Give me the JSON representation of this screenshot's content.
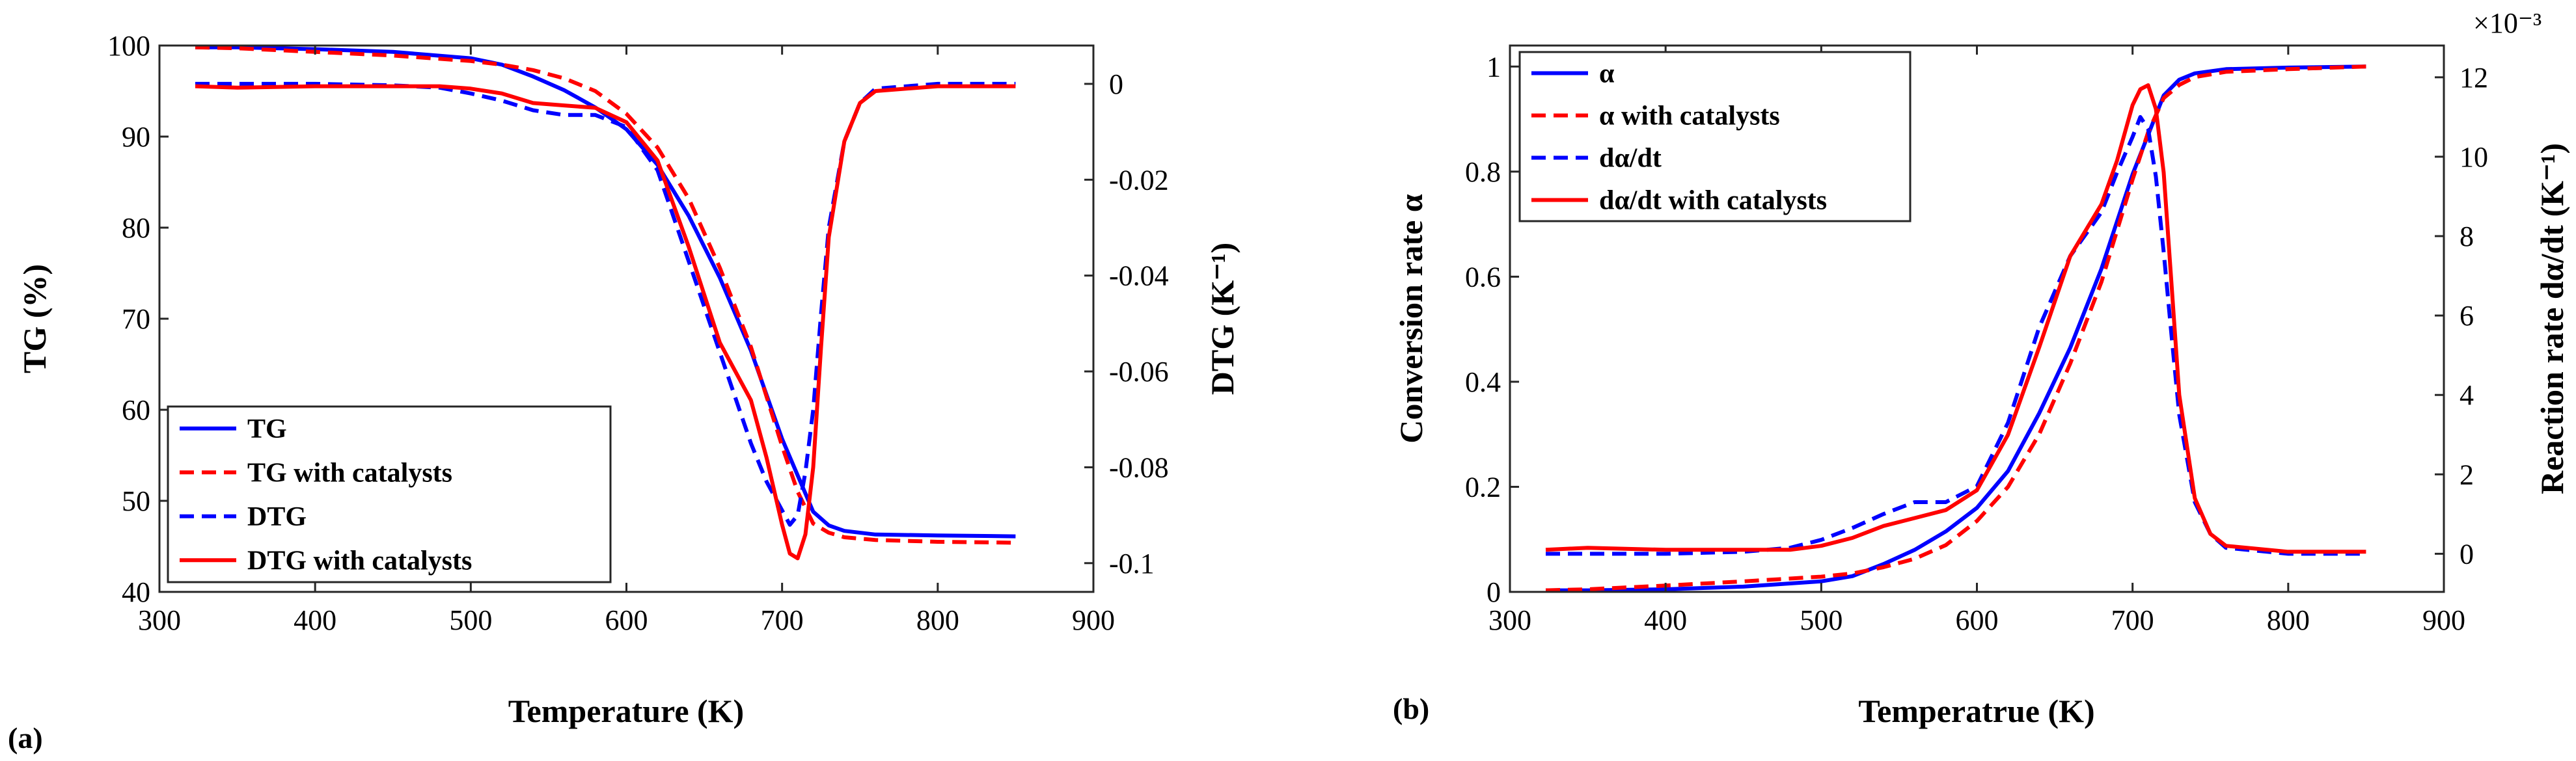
{
  "panels": {
    "a": {
      "label": "(a)",
      "xlabel": "Temperature (K)",
      "ylabel_left": "TG (%)",
      "ylabel_right": "DTG (K⁻¹)"
    },
    "b": {
      "label": "(b)",
      "xlabel": "Temperatrue (K)",
      "ylabel_left": "Conversion rate α",
      "ylabel_right": "Reaction rate dα/dt (K⁻¹)",
      "exponent_label": "×10⁻³"
    }
  },
  "chart_data": [
    {
      "type": "line",
      "panel": "(a)",
      "xlabel": "Temperature (K)",
      "ylabel": "TG (%)",
      "y2label": "DTG (K⁻¹)",
      "xlim": [
        300,
        900
      ],
      "ylim": [
        40,
        100
      ],
      "y2lim": [
        -0.106,
        0.008
      ],
      "x_ticks": [
        300,
        400,
        500,
        600,
        700,
        800,
        900
      ],
      "y_ticks": [
        40,
        50,
        60,
        70,
        80,
        90,
        100
      ],
      "y2_ticks": [
        "0",
        "-0.02",
        "-0.04",
        "-0.06",
        "-0.08",
        "-0.1"
      ],
      "y2_tick_values": [
        0,
        -0.02,
        -0.04,
        -0.06,
        -0.08,
        -0.1
      ],
      "legend_position": "bottom-left",
      "series": [
        {
          "name": "TG",
          "axis": "left",
          "color": "#0000ff",
          "dash": "solid",
          "x": [
            323,
            350,
            400,
            450,
            500,
            520,
            540,
            560,
            580,
            600,
            620,
            640,
            660,
            680,
            700,
            710,
            720,
            730,
            740,
            760,
            800,
            850
          ],
          "y": [
            99.8,
            99.8,
            99.6,
            99.3,
            98.6,
            97.9,
            96.6,
            95.1,
            93.2,
            90.8,
            86.9,
            81.3,
            74.5,
            66.5,
            56.8,
            52.8,
            48.8,
            47.3,
            46.7,
            46.3,
            46.2,
            46.1
          ]
        },
        {
          "name": "TG with catalysts",
          "axis": "left",
          "color": "#ff0000",
          "dash": "dashed",
          "x": [
            323,
            350,
            400,
            450,
            500,
            520,
            540,
            560,
            580,
            600,
            620,
            640,
            660,
            680,
            700,
            710,
            720,
            730,
            740,
            760,
            800,
            850
          ],
          "y": [
            99.8,
            99.7,
            99.3,
            98.9,
            98.3,
            97.9,
            97.3,
            96.4,
            95.0,
            92.5,
            88.8,
            83.2,
            75.6,
            66.9,
            56.0,
            51.0,
            47.5,
            46.5,
            46.0,
            45.7,
            45.5,
            45.4
          ]
        },
        {
          "name": "DTG",
          "axis": "right",
          "color": "#0000ff",
          "dash": "dashed",
          "x": [
            323,
            350,
            400,
            450,
            480,
            500,
            520,
            540,
            560,
            580,
            600,
            620,
            640,
            660,
            680,
            690,
            700,
            705,
            710,
            715,
            720,
            725,
            730,
            740,
            750,
            760,
            800,
            850
          ],
          "y": [
            0.0,
            0.0,
            0.0,
            -0.0003,
            -0.0008,
            -0.002,
            -0.0035,
            -0.0055,
            -0.0065,
            -0.0065,
            -0.009,
            -0.018,
            -0.037,
            -0.056,
            -0.075,
            -0.083,
            -0.089,
            -0.092,
            -0.09,
            -0.081,
            -0.068,
            -0.048,
            -0.03,
            -0.012,
            -0.004,
            -0.001,
            0.0,
            0.0
          ]
        },
        {
          "name": "DTG with catalysts",
          "axis": "right",
          "color": "#ff0000",
          "dash": "solid",
          "x": [
            323,
            350,
            400,
            450,
            480,
            500,
            520,
            540,
            560,
            580,
            600,
            620,
            640,
            660,
            680,
            690,
            700,
            705,
            710,
            715,
            720,
            725,
            730,
            740,
            750,
            760,
            800,
            850
          ],
          "y": [
            -0.0005,
            -0.0008,
            -0.0005,
            -0.0005,
            -0.0005,
            -0.001,
            -0.002,
            -0.004,
            -0.0045,
            -0.005,
            -0.008,
            -0.016,
            -0.034,
            -0.054,
            -0.066,
            -0.078,
            -0.092,
            -0.098,
            -0.099,
            -0.094,
            -0.08,
            -0.055,
            -0.032,
            -0.012,
            -0.004,
            -0.0015,
            -0.0005,
            -0.0005
          ]
        }
      ]
    },
    {
      "type": "line",
      "panel": "(b)",
      "xlabel": "Temperatrue (K)",
      "ylabel": "Conversion rate α",
      "y2label": "Reaction rate dα/dt (K⁻¹)",
      "y2_multiplier": "×10⁻³",
      "xlim": [
        300,
        900
      ],
      "ylim": [
        0,
        1.04
      ],
      "y2lim": [
        -0.96,
        12.8
      ],
      "x_ticks": [
        300,
        400,
        500,
        600,
        700,
        800,
        900
      ],
      "y_ticks": [
        0,
        0.2,
        0.4,
        0.6,
        0.8,
        1
      ],
      "y2_ticks": [
        0,
        2,
        4,
        6,
        8,
        10,
        12
      ],
      "legend_position": "top-left",
      "series": [
        {
          "name": "α",
          "axis": "left",
          "color": "#0000ff",
          "dash": "solid",
          "x": [
            323,
            350,
            400,
            450,
            500,
            520,
            540,
            560,
            580,
            600,
            620,
            640,
            660,
            680,
            700,
            710,
            720,
            730,
            740,
            760,
            800,
            850
          ],
          "y": [
            0.003,
            0.003,
            0.005,
            0.01,
            0.02,
            0.03,
            0.053,
            0.08,
            0.115,
            0.16,
            0.23,
            0.34,
            0.465,
            0.615,
            0.795,
            0.87,
            0.945,
            0.975,
            0.987,
            0.995,
            0.998,
            1.0
          ]
        },
        {
          "name": "α with catalysts",
          "axis": "left",
          "color": "#ff0000",
          "dash": "dashed",
          "x": [
            323,
            350,
            400,
            450,
            500,
            520,
            540,
            560,
            580,
            600,
            620,
            640,
            660,
            680,
            700,
            710,
            720,
            730,
            740,
            760,
            800,
            850
          ],
          "y": [
            0.003,
            0.005,
            0.012,
            0.02,
            0.029,
            0.035,
            0.047,
            0.063,
            0.089,
            0.135,
            0.2,
            0.3,
            0.435,
            0.59,
            0.785,
            0.875,
            0.94,
            0.965,
            0.98,
            0.99,
            0.995,
            1.0
          ]
        },
        {
          "name": "dα/dt",
          "axis": "right",
          "color": "#0000ff",
          "dash": "dashed",
          "x": [
            323,
            350,
            400,
            450,
            480,
            500,
            520,
            540,
            560,
            580,
            600,
            620,
            640,
            660,
            680,
            690,
            700,
            705,
            710,
            715,
            720,
            725,
            730,
            740,
            750,
            760,
            800,
            850
          ],
          "y": [
            0.0,
            0.0,
            0.0,
            0.05,
            0.15,
            0.35,
            0.65,
            1.0,
            1.3,
            1.3,
            1.7,
            3.3,
            5.7,
            7.5,
            8.6,
            9.6,
            10.5,
            11.0,
            10.7,
            9.5,
            7.6,
            5.5,
            3.5,
            1.3,
            0.5,
            0.15,
            0.0,
            0.0
          ]
        },
        {
          "name": "dα/dt with catalysts",
          "axis": "right",
          "color": "#ff0000",
          "dash": "solid",
          "x": [
            323,
            350,
            400,
            450,
            480,
            500,
            520,
            540,
            560,
            580,
            600,
            620,
            640,
            660,
            680,
            690,
            700,
            705,
            710,
            715,
            720,
            725,
            730,
            740,
            750,
            760,
            800,
            850
          ],
          "y": [
            0.1,
            0.15,
            0.1,
            0.1,
            0.1,
            0.2,
            0.4,
            0.7,
            0.9,
            1.1,
            1.6,
            3.0,
            5.2,
            7.5,
            8.8,
            9.9,
            11.3,
            11.7,
            11.8,
            11.2,
            9.6,
            6.8,
            4.0,
            1.4,
            0.5,
            0.2,
            0.05,
            0.05
          ]
        }
      ]
    }
  ]
}
